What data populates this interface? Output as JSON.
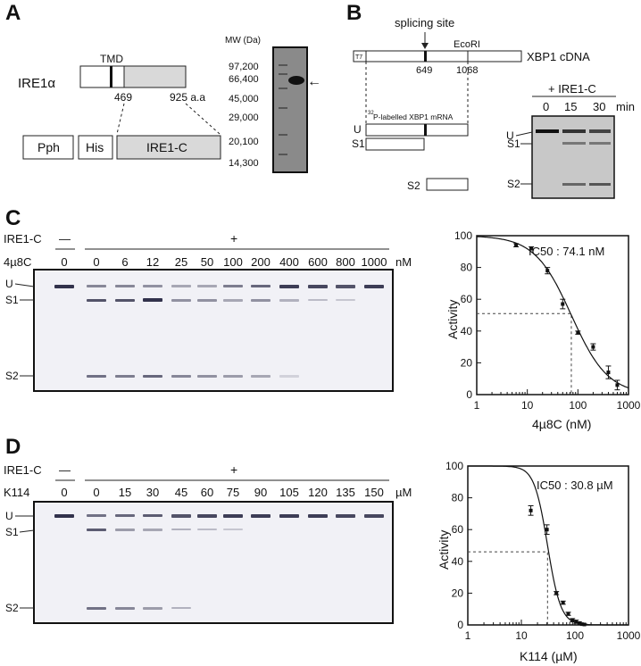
{
  "panels": {
    "A": {
      "letter": "A",
      "protein": "IRE1α",
      "tmd": "TMD",
      "pos_469": "469",
      "pos_925": "925 a.a",
      "pph": "Pph",
      "his": "His",
      "ire1c": "IRE1-C",
      "mw_title": "MW (Da)",
      "mw_markers": [
        "97,200",
        "66,400",
        "45,000",
        "29,000",
        "20,100",
        "14,300"
      ],
      "arrow": "←"
    },
    "B": {
      "letter": "B",
      "splicing_site": "splicing site",
      "ecori": "EcoRI",
      "t7": "T7",
      "cdna": "XBP1 cDNA",
      "pos_649": "649",
      "pos_1068": "1068",
      "mrna_sup": "32",
      "mrna": "P-labelled XBP1 mRNA",
      "u": "U",
      "s1": "S1",
      "s2": "S2",
      "treatment": "+ IRE1-C",
      "times": [
        "0",
        "15",
        "30"
      ],
      "time_unit": "min",
      "gel_u": "U",
      "gel_s1": "S1",
      "gel_s2": "S2"
    },
    "C": {
      "letter": "C",
      "row1_label": "IRE1-C",
      "row2_label": "4µ8C",
      "minus": "—",
      "plus": "+",
      "concentrations": [
        "0",
        "0",
        "6",
        "12",
        "25",
        "50",
        "100",
        "200",
        "400",
        "600",
        "800",
        "1000"
      ],
      "unit": "nM",
      "u": "U",
      "s1": "S1",
      "s2": "S2"
    },
    "D": {
      "letter": "D",
      "row1_label": "IRE1-C",
      "row2_label": "K114",
      "minus": "—",
      "plus": "+",
      "concentrations": [
        "0",
        "0",
        "15",
        "30",
        "45",
        "60",
        "75",
        "90",
        "105",
        "120",
        "135",
        "150"
      ],
      "unit": "µM",
      "u": "U",
      "s1": "S1",
      "s2": "S2"
    }
  },
  "chart_data": [
    {
      "type": "scatter",
      "title": "IC50 : 74.1 nM",
      "xlabel": "4µ8C (nM)",
      "ylabel": "Activity",
      "xscale": "log",
      "xlim": [
        1,
        1000
      ],
      "ylim": [
        0,
        100
      ],
      "xticks": [
        "1",
        "10",
        "100",
        "1000"
      ],
      "yticks": [
        "0",
        "20",
        "40",
        "60",
        "80",
        "100"
      ],
      "ic50": 74.1,
      "ic50_activity": 51,
      "hill": 1.2,
      "x": [
        6,
        12,
        25,
        50,
        100,
        200,
        400,
        600
      ],
      "y": [
        94,
        92,
        78,
        57,
        39,
        30,
        14,
        6
      ],
      "err": [
        1,
        1,
        2,
        3,
        1,
        2,
        4,
        3
      ]
    },
    {
      "type": "scatter",
      "title": "IC50 : 30.8 µM",
      "xlabel": "K114 (µM)",
      "ylabel": "Activity",
      "xscale": "log",
      "xlim": [
        1,
        1000
      ],
      "ylim": [
        0,
        100
      ],
      "xticks": [
        "1",
        "10",
        "100",
        "1000"
      ],
      "yticks": [
        "0",
        "20",
        "40",
        "60",
        "80",
        "100"
      ],
      "ic50": 30.8,
      "ic50_activity": 46,
      "hill": 3.5,
      "x": [
        15,
        30,
        45,
        60,
        75,
        90,
        105,
        120,
        135,
        150
      ],
      "y": [
        72,
        60,
        20,
        14,
        7,
        3,
        2,
        1,
        0.5,
        0.3
      ],
      "err": [
        3,
        3,
        1,
        1,
        1,
        1,
        1,
        1,
        0.5,
        0.3
      ]
    }
  ]
}
